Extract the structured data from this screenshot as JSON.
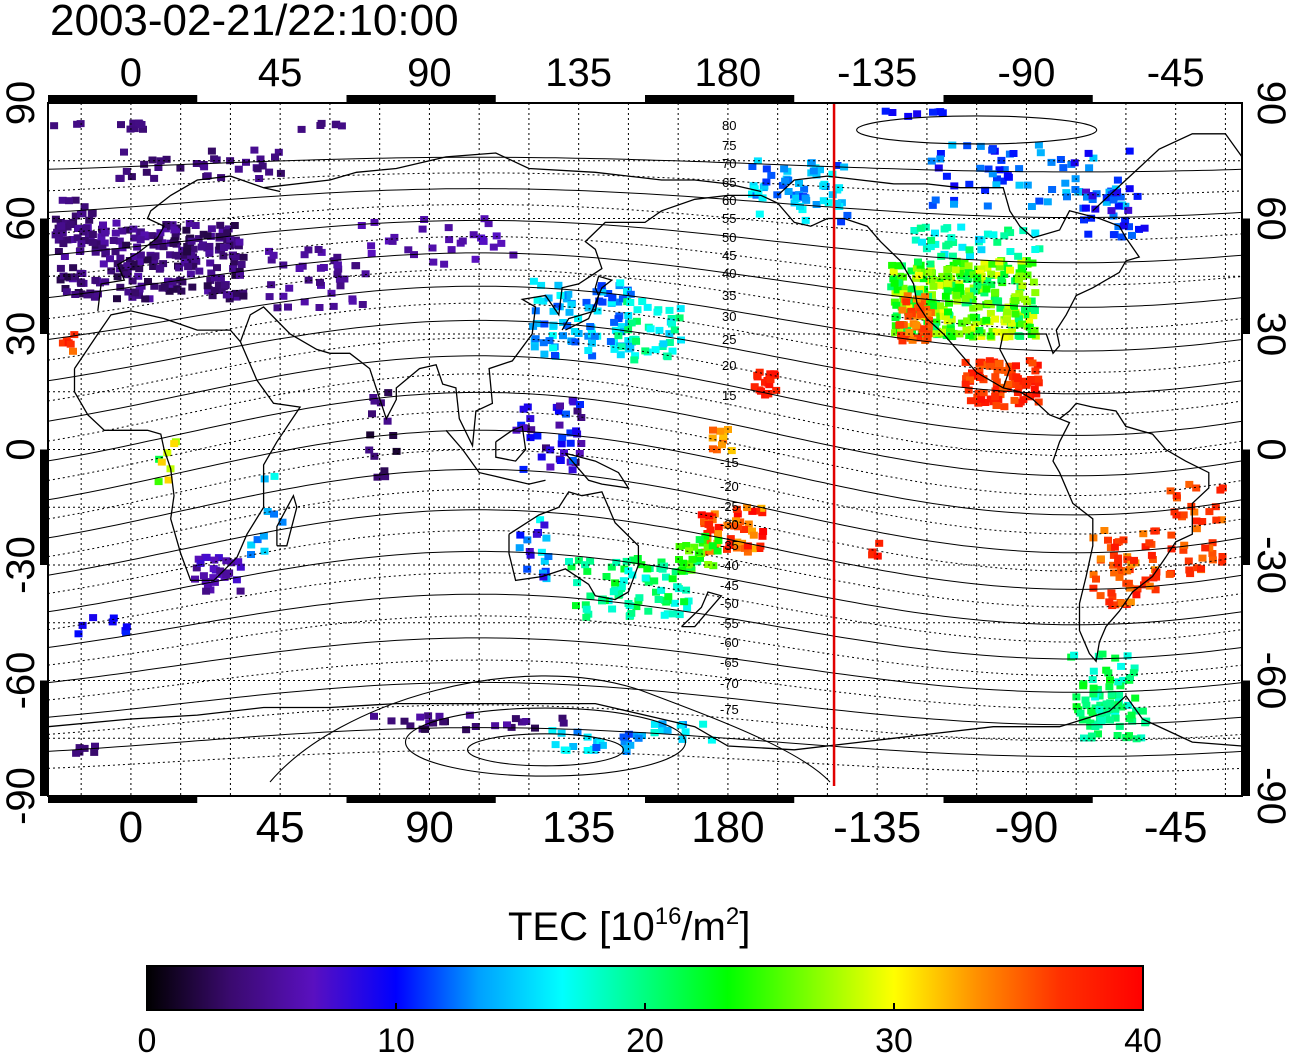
{
  "title": "2003-02-21/22:10:00",
  "map": {
    "lon_range": [
      -25,
      335
    ],
    "lat_range": [
      -90,
      90
    ],
    "top_lon_ticks": [
      "0",
      "45",
      "90",
      "135",
      "180",
      "-135",
      "-90",
      "-45"
    ],
    "bottom_lon_ticks": [
      "0",
      "45",
      "90",
      "135",
      "180",
      "-135",
      "-90",
      "-45"
    ],
    "lat_ticks": [
      "90",
      "60",
      "30",
      "0",
      "-30",
      "-60",
      "-90"
    ],
    "right_lat_ticks": [
      "90",
      "60",
      "30",
      "0",
      "-30",
      "-60",
      "-90"
    ],
    "north_contour_labels": [
      "80",
      "75",
      "70",
      "65",
      "60",
      "55",
      "50",
      "45",
      "40",
      "35",
      "30",
      "25",
      "20",
      "15"
    ],
    "south_contour_labels": [
      "-15",
      "-20",
      "-25",
      "-30",
      "-35",
      "-40",
      "-45",
      "-50",
      "-55",
      "-60",
      "-65",
      "-70",
      "-75"
    ],
    "red_line_lon": -148,
    "grid": true
  },
  "colorbar": {
    "label_main": "TEC  [10",
    "label_exp1": "16",
    "label_mid": "/m",
    "label_exp2": "2",
    "label_end": "]",
    "tick_labels": [
      "0",
      "10",
      "20",
      "30",
      "40"
    ],
    "colors": [
      "#000000",
      "#3a0a6e",
      "#5a10c0",
      "#0000ff",
      "#00a0ff",
      "#00ffff",
      "#00ff80",
      "#00ff00",
      "#80ff00",
      "#ffff00",
      "#ff9000",
      "#ff3000",
      "#ff0000"
    ]
  }
}
